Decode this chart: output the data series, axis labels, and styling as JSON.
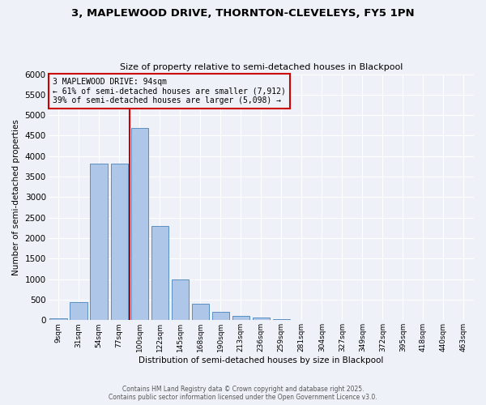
{
  "title": "3, MAPLEWOOD DRIVE, THORNTON-CLEVELEYS, FY5 1PN",
  "subtitle": "Size of property relative to semi-detached houses in Blackpool",
  "xlabel": "Distribution of semi-detached houses by size in Blackpool",
  "ylabel": "Number of semi-detached properties",
  "footnote1": "Contains HM Land Registry data © Crown copyright and database right 2025.",
  "footnote2": "Contains public sector information licensed under the Open Government Licence v3.0.",
  "bar_labels": [
    "9sqm",
    "31sqm",
    "54sqm",
    "77sqm",
    "100sqm",
    "122sqm",
    "145sqm",
    "168sqm",
    "190sqm",
    "213sqm",
    "236sqm",
    "259sqm",
    "281sqm",
    "304sqm",
    "327sqm",
    "349sqm",
    "372sqm",
    "395sqm",
    "418sqm",
    "440sqm",
    "463sqm"
  ],
  "bar_values": [
    50,
    440,
    3820,
    3820,
    4680,
    2300,
    1000,
    400,
    210,
    100,
    60,
    20,
    10,
    5,
    3,
    2,
    1,
    1,
    1,
    1,
    1
  ],
  "bar_color": "#aec6e8",
  "bar_edge_color": "#5a8fc2",
  "ylim": [
    0,
    6000
  ],
  "yticks": [
    0,
    500,
    1000,
    1500,
    2000,
    2500,
    3000,
    3500,
    4000,
    4500,
    5000,
    5500,
    6000
  ],
  "property_line_x": 3.5,
  "red_line_color": "#cc0000",
  "annotation_title": "3 MAPLEWOOD DRIVE: 94sqm",
  "annotation_line1": "← 61% of semi-detached houses are smaller (7,912)",
  "annotation_line2": "39% of semi-detached houses are larger (5,098) →",
  "annotation_box_color": "#cc0000",
  "bg_color": "#eef2f8",
  "grid_color": "#ffffff"
}
